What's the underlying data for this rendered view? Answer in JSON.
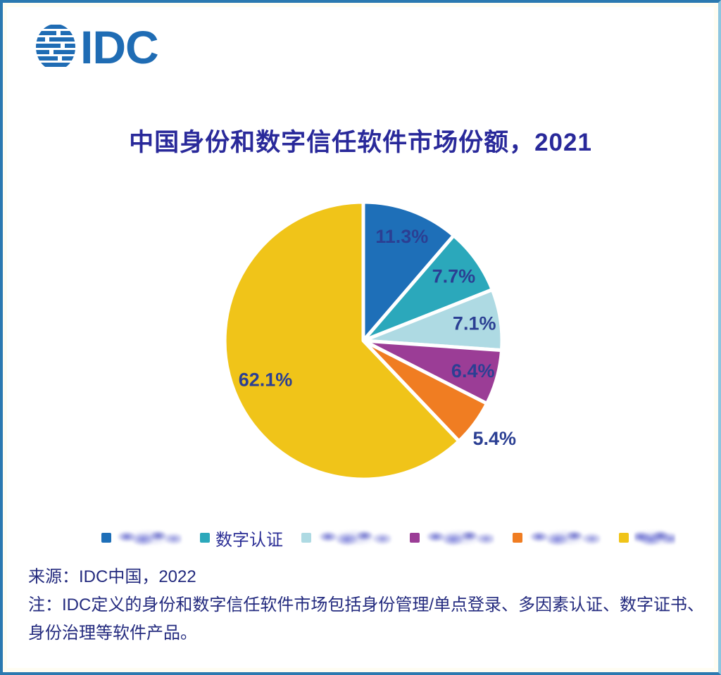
{
  "logo": {
    "text": "IDC",
    "icon": "globe-stripes",
    "color": "#1f6cb4"
  },
  "title": "中国身份和数字信任软件市场份额，2021",
  "chart_data": {
    "type": "pie",
    "title": "中国身份和数字信任软件市场份额，2021",
    "unit": "%",
    "direction": "clockwise",
    "start_angle_deg": 0,
    "label_color": "#2b3f93",
    "slices": [
      {
        "value": 11.3,
        "label": "11.3%",
        "color": "#1e6fb8",
        "label_r": 0.8
      },
      {
        "value": 7.7,
        "label": "7.7%",
        "color": "#2ba8bb",
        "label_r": 0.8
      },
      {
        "value": 7.1,
        "label": "7.1%",
        "color": "#aedae3",
        "label_r": 0.81
      },
      {
        "value": 6.4,
        "label": "6.4%",
        "color": "#9b3d96",
        "label_r": 0.82
      },
      {
        "value": 5.4,
        "label": "5.4%",
        "color": "#f07d22",
        "label_r": 1.18
      },
      {
        "value": 62.1,
        "label": "62.1%",
        "color": "#f0c419",
        "label_r": 0.76
      }
    ]
  },
  "legend": {
    "items": [
      {
        "color": "#1e6fb8",
        "label": "",
        "redacted": true,
        "scribble_width": 92
      },
      {
        "color": "#2ba8bb",
        "label": "数字认证",
        "redacted": false,
        "scribble_width": 0
      },
      {
        "color": "#aedae3",
        "label": "",
        "redacted": true,
        "scribble_width": 106
      },
      {
        "color": "#9b3d96",
        "label": "",
        "redacted": true,
        "scribble_width": 98
      },
      {
        "color": "#f07d22",
        "label": "",
        "redacted": true,
        "scribble_width": 103
      },
      {
        "color": "#f0c419",
        "label": "",
        "redacted": true,
        "scribble_width": 58
      }
    ]
  },
  "footer": {
    "source": "来源：IDC中国，2022",
    "note_line1": "注：IDC定义的身份和数字信任软件市场包括身份管理/单点登录、多因素认证、数字证书、",
    "note_line2": "身份治理等软件产品。"
  }
}
